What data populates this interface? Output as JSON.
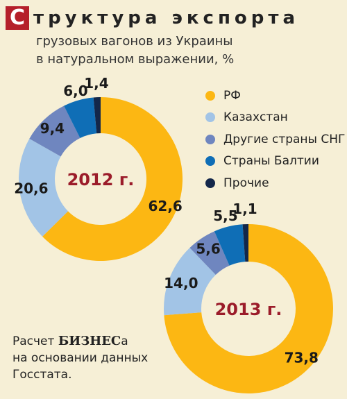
{
  "header": {
    "title_cap": "С",
    "title_rest": "труктура экспорта",
    "subtitle_line1": "грузовых вагонов из Украины",
    "subtitle_line2": "в натуральном выражении, %"
  },
  "colors": {
    "rf": "#fcb713",
    "kazakhstan": "#a2c4e6",
    "other_cis": "#6f86bf",
    "baltic": "#0f6eb6",
    "other": "#13274a",
    "year_text": "#9b1c2a"
  },
  "chart_data": [
    {
      "type": "pie",
      "title": "2012 г.",
      "categories": [
        "РФ",
        "Казахстан",
        "Другие страны СНГ",
        "Страны Балтии",
        "Прочие"
      ],
      "values": [
        62.6,
        20.6,
        9.4,
        6.0,
        1.4
      ],
      "labels": [
        "62,6",
        "20,6",
        "9,4",
        "6,0",
        "1,4"
      ]
    },
    {
      "type": "pie",
      "title": "2013 г.",
      "categories": [
        "РФ",
        "Казахстан",
        "Другие страны СНГ",
        "Страны Балтии",
        "Прочие"
      ],
      "values": [
        73.8,
        14.0,
        5.6,
        5.5,
        1.1
      ],
      "labels": [
        "73,8",
        "14,0",
        "5,6",
        "5,5",
        "1,1"
      ]
    }
  ],
  "legend": {
    "items": [
      {
        "label": "РФ",
        "color": "#fcb713"
      },
      {
        "label": "Казахстан",
        "color": "#a2c4e6"
      },
      {
        "label": "Другие страны СНГ",
        "color": "#6f86bf"
      },
      {
        "label": "Страны Балтии",
        "color": "#0f6eb6"
      },
      {
        "label": "Прочие",
        "color": "#13274a"
      }
    ]
  },
  "source": {
    "prefix": "Расчет ",
    "brand": "БИЗНЕС",
    "suffix": "а",
    "line2": "на основании данных",
    "line3": "Госстата."
  }
}
